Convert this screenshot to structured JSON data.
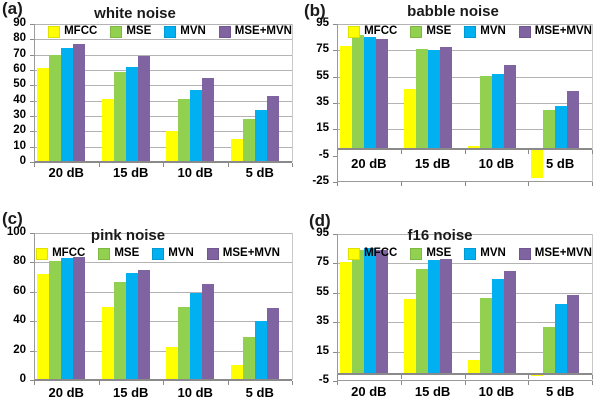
{
  "figure": {
    "description": "2x2 grid of grouped bar charts comparing feature-compensation methods under four noise types",
    "categories_label_unit": "dB"
  },
  "colors": {
    "mfcc": "#FFFF00",
    "mse": "#92D050",
    "mvn": "#00B0F0",
    "mse_mvn": "#8064A2",
    "gridline": "#b3b3b3",
    "axis": "#8a8a8a",
    "text": "#000000"
  },
  "legend_labels": [
    "MFCC",
    "MSE",
    "MVN",
    "MSE+MVN"
  ],
  "chart_data": [
    {
      "type": "bar",
      "panel_label": "(a)",
      "title": "white noise",
      "categories": [
        "20 dB",
        "15 dB",
        "10 dB",
        "5 dB"
      ],
      "series": [
        {
          "name": "MFCC",
          "color": "#FFFF00",
          "values": [
            61,
            41,
            20.5,
            15
          ]
        },
        {
          "name": "MSE",
          "color": "#92D050",
          "values": [
            70,
            58.5,
            41,
            28
          ]
        },
        {
          "name": "MVN",
          "color": "#00B0F0",
          "values": [
            74.5,
            62,
            47,
            34
          ]
        },
        {
          "name": "MSE+MVN",
          "color": "#8064A2",
          "values": [
            77,
            69,
            55,
            43
          ]
        }
      ],
      "ylim": [
        0,
        90
      ],
      "yticks": [
        0,
        10,
        20,
        30,
        40,
        50,
        60,
        70,
        80,
        90
      ],
      "grid": true,
      "legend_position": "top-right-inside"
    },
    {
      "type": "bar",
      "panel_label": "(b)",
      "title": "babble noise",
      "categories": [
        "20 dB",
        "15 dB",
        "10 dB",
        "5 dB"
      ],
      "series": [
        {
          "name": "MFCC",
          "color": "#FFFF00",
          "values": [
            78,
            46,
            2,
            -22
          ]
        },
        {
          "name": "MSE",
          "color": "#92D050",
          "values": [
            87,
            76,
            55.5,
            30
          ]
        },
        {
          "name": "MVN",
          "color": "#00B0F0",
          "values": [
            85,
            75.5,
            57,
            32.5
          ]
        },
        {
          "name": "MSE+MVN",
          "color": "#8064A2",
          "values": [
            83.5,
            77.5,
            63.5,
            44
          ]
        }
      ],
      "ylim": [
        -25,
        95
      ],
      "yticks": [
        -25,
        -5,
        15,
        35,
        55,
        75,
        95
      ],
      "grid": true,
      "legend_position": "top-right-inside"
    },
    {
      "type": "bar",
      "panel_label": "(c)",
      "title": "pink noise",
      "categories": [
        "20 dB",
        "15 dB",
        "10 dB",
        "5 dB"
      ],
      "series": [
        {
          "name": "MFCC",
          "color": "#FFFF00",
          "values": [
            72,
            50,
            22.5,
            10.5
          ]
        },
        {
          "name": "MSE",
          "color": "#92D050",
          "values": [
            81,
            67,
            49.5,
            29.5
          ]
        },
        {
          "name": "MVN",
          "color": "#00B0F0",
          "values": [
            83,
            72.5,
            59,
            40
          ]
        },
        {
          "name": "MSE+MVN",
          "color": "#8064A2",
          "values": [
            84,
            75,
            65,
            49
          ]
        }
      ],
      "ylim": [
        0,
        100
      ],
      "yticks": [
        0,
        20,
        40,
        60,
        80,
        100
      ],
      "grid": true,
      "legend_position": "top-right-inside"
    },
    {
      "type": "bar",
      "panel_label": "(d)",
      "title": "f16 noise",
      "categories": [
        "20 dB",
        "15 dB",
        "10 dB",
        "5 dB"
      ],
      "series": [
        {
          "name": "MFCC",
          "color": "#FFFF00",
          "values": [
            76,
            50.5,
            9,
            -1.5
          ]
        },
        {
          "name": "MSE",
          "color": "#92D050",
          "values": [
            84,
            71,
            51.5,
            31.5
          ]
        },
        {
          "name": "MVN",
          "color": "#00B0F0",
          "values": [
            85.5,
            77.5,
            64.5,
            47.5
          ]
        },
        {
          "name": "MSE+MVN",
          "color": "#8064A2",
          "values": [
            84,
            78,
            69.5,
            53.5
          ]
        }
      ],
      "ylim": [
        -5,
        95
      ],
      "yticks": [
        -5,
        15,
        35,
        55,
        75,
        95
      ],
      "grid": true,
      "legend_position": "top-right-inside"
    }
  ]
}
